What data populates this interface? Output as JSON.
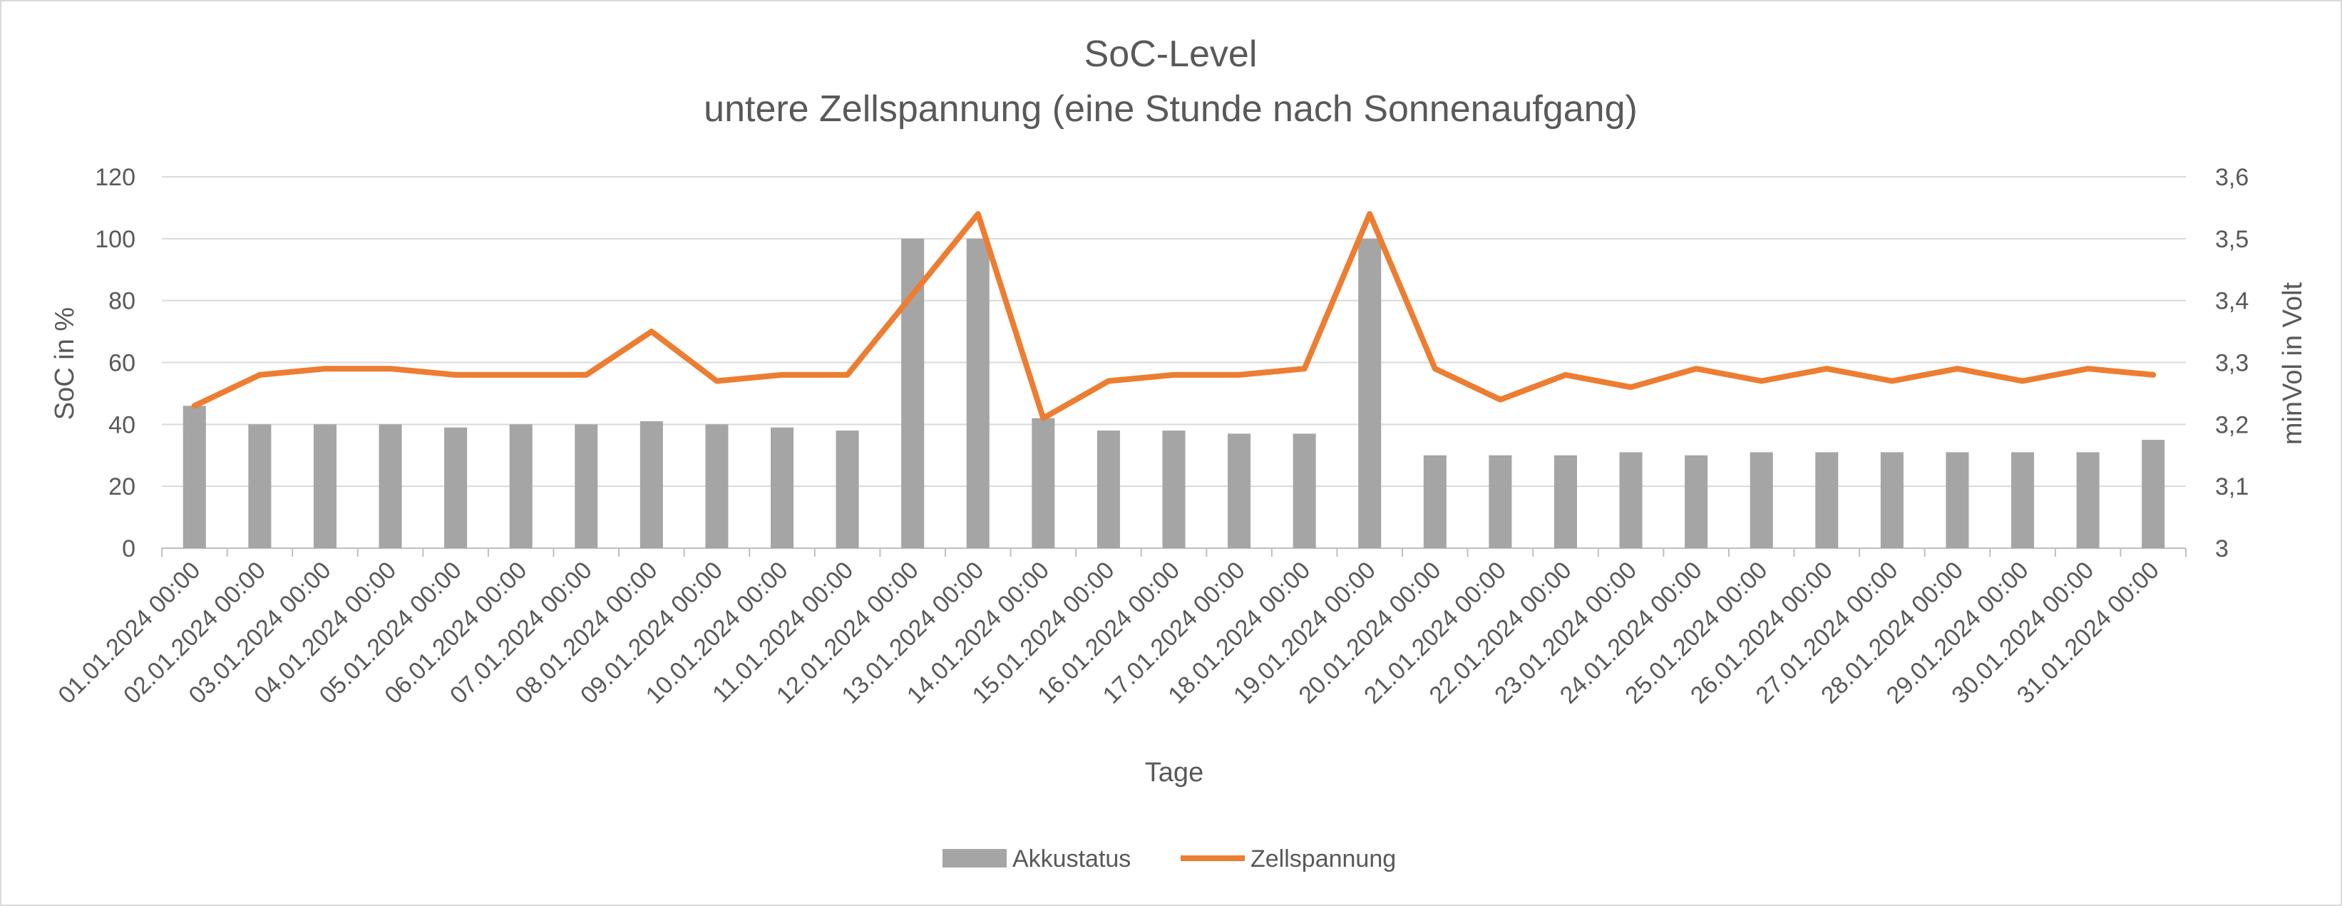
{
  "chart_data": {
    "type": "bar+line",
    "title": "SoC-Level",
    "subtitle": "untere Zellspannung (eine Stunde nach Sonnenaufgang)",
    "xlabel": "Tage",
    "ylabel_left": "SoC in %",
    "ylabel_right": "minVol in Volt",
    "ylim_left": [
      0,
      120
    ],
    "ylim_right": [
      3,
      3.6
    ],
    "yticks_left": [
      "0",
      "20",
      "40",
      "60",
      "80",
      "100",
      "120"
    ],
    "yticks_right": [
      "3",
      "3,1",
      "3,2",
      "3,3",
      "3,4",
      "3,5",
      "3,6"
    ],
    "grid": true,
    "legend_position": "bottom",
    "categories": [
      "01.01.2024 00:00",
      "02.01.2024 00:00",
      "03.01.2024 00:00",
      "04.01.2024 00:00",
      "05.01.2024 00:00",
      "06.01.2024 00:00",
      "07.01.2024 00:00",
      "08.01.2024 00:00",
      "09.01.2024 00:00",
      "10.01.2024 00:00",
      "11.01.2024 00:00",
      "12.01.2024 00:00",
      "13.01.2024 00:00",
      "14.01.2024 00:00",
      "15.01.2024 00:00",
      "16.01.2024 00:00",
      "17.01.2024 00:00",
      "18.01.2024 00:00",
      "19.01.2024 00:00",
      "20.01.2024 00:00",
      "21.01.2024 00:00",
      "22.01.2024 00:00",
      "23.01.2024 00:00",
      "24.01.2024 00:00",
      "25.01.2024 00:00",
      "26.01.2024 00:00",
      "27.01.2024 00:00",
      "28.01.2024 00:00",
      "29.01.2024 00:00",
      "30.01.2024 00:00",
      "31.01.2024 00:00"
    ],
    "series": [
      {
        "name": "Akkustatus",
        "type": "bar",
        "axis": "left",
        "color": "#a5a5a5",
        "values": [
          46,
          40,
          40,
          40,
          39,
          40,
          40,
          41,
          40,
          39,
          38,
          100,
          100,
          42,
          38,
          38,
          37,
          37,
          100,
          30,
          30,
          30,
          31,
          30,
          31,
          31,
          31,
          31,
          31,
          31,
          35
        ]
      },
      {
        "name": "Zellspannung",
        "type": "line",
        "axis": "right",
        "color": "#ed7d31",
        "values": [
          3.23,
          3.28,
          3.29,
          3.29,
          3.28,
          3.28,
          3.28,
          3.35,
          3.27,
          3.28,
          3.28,
          3.41,
          3.54,
          3.21,
          3.27,
          3.28,
          3.28,
          3.29,
          3.54,
          3.29,
          3.24,
          3.28,
          3.26,
          3.29,
          3.27,
          3.29,
          3.27,
          3.29,
          3.27,
          3.29,
          3.28
        ]
      }
    ]
  }
}
